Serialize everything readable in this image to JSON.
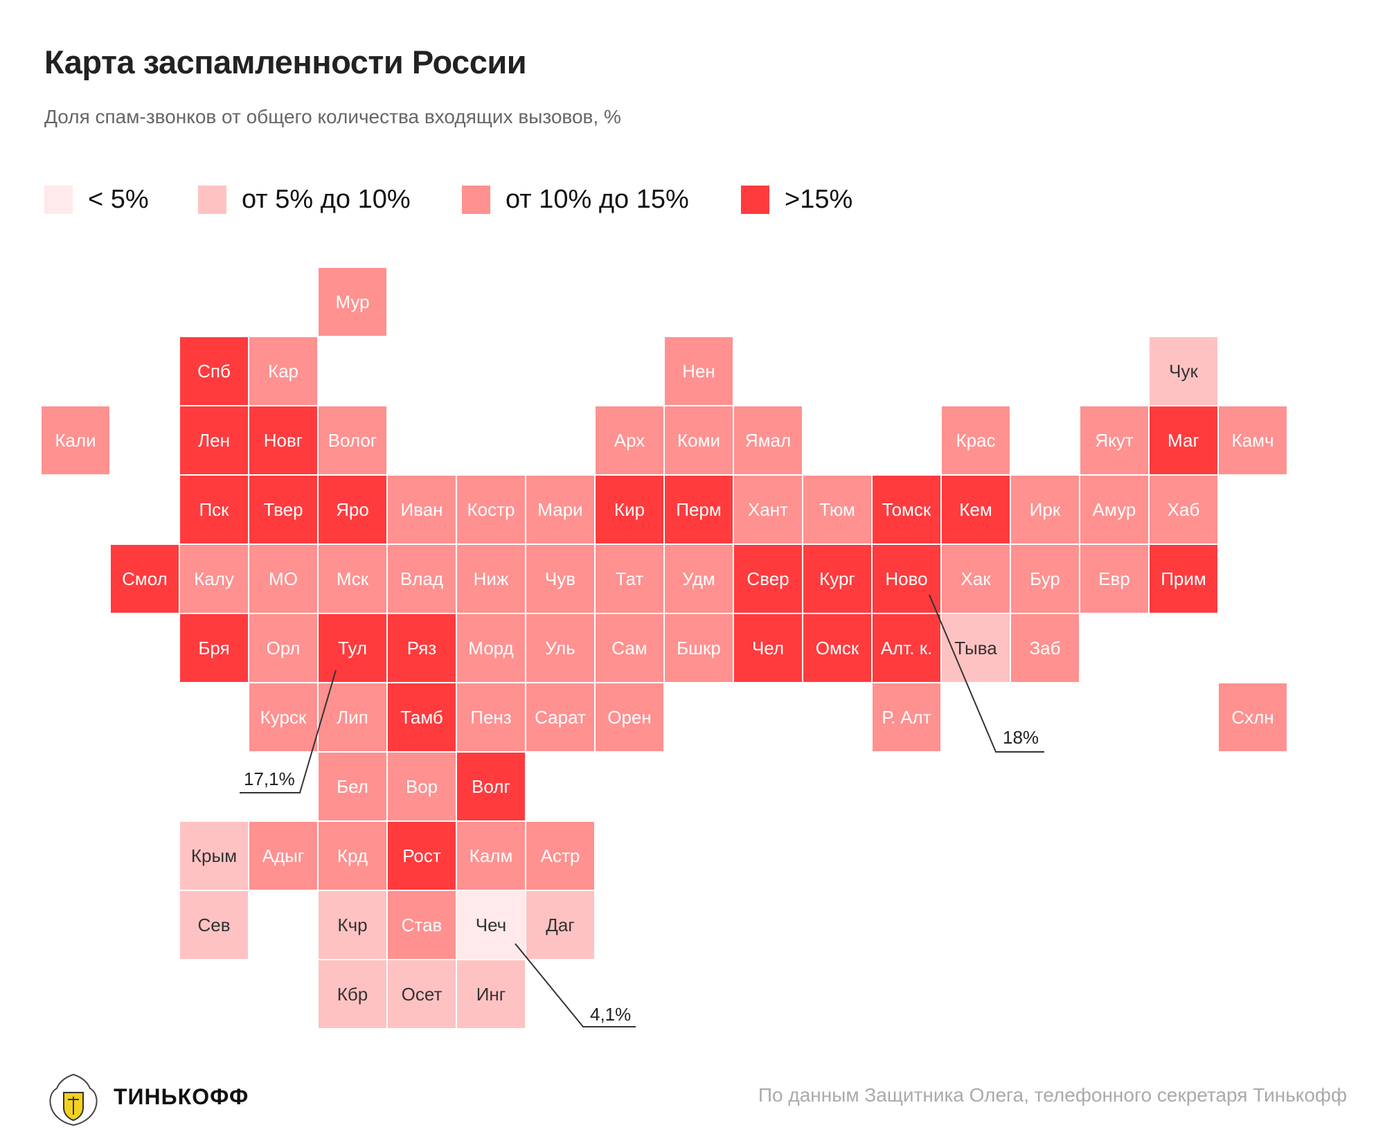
{
  "title": "Карта заспамленности России",
  "subtitle": "Доля спам-звонков от общего количества входящих вызовов, %",
  "colors": {
    "lt5": "#ffe9ea",
    "5to10": "#ffc2c2",
    "10to15": "#ff9190",
    "gt15": "#ff3b3e"
  },
  "legend": [
    {
      "key": "lt5",
      "label": "< 5%"
    },
    {
      "key": "5to10",
      "label": "от 5% до 10%"
    },
    {
      "key": "10to15",
      "label": "от 10% до 15%"
    },
    {
      "key": "gt15",
      "label": ">15%"
    }
  ],
  "regions": [
    {
      "name": "Мур",
      "cat": "10to15"
    },
    {
      "name": "Спб",
      "cat": "gt15"
    },
    {
      "name": "Кар",
      "cat": "10to15"
    },
    {
      "name": "Нен",
      "cat": "10to15"
    },
    {
      "name": "Чук",
      "cat": "5to10"
    },
    {
      "name": "Кали",
      "cat": "10to15"
    },
    {
      "name": "Лен",
      "cat": "gt15"
    },
    {
      "name": "Новг",
      "cat": "gt15"
    },
    {
      "name": "Волог",
      "cat": "10to15"
    },
    {
      "name": "Арх",
      "cat": "10to15"
    },
    {
      "name": "Коми",
      "cat": "10to15"
    },
    {
      "name": "Ямал",
      "cat": "10to15"
    },
    {
      "name": "Крас",
      "cat": "10to15"
    },
    {
      "name": "Якут",
      "cat": "10to15"
    },
    {
      "name": "Маг",
      "cat": "gt15"
    },
    {
      "name": "Камч",
      "cat": "10to15"
    },
    {
      "name": "Пск",
      "cat": "gt15"
    },
    {
      "name": "Твер",
      "cat": "gt15"
    },
    {
      "name": "Яро",
      "cat": "gt15"
    },
    {
      "name": "Иван",
      "cat": "10to15"
    },
    {
      "name": "Костр",
      "cat": "10to15"
    },
    {
      "name": "Мари",
      "cat": "10to15"
    },
    {
      "name": "Кир",
      "cat": "gt15"
    },
    {
      "name": "Перм",
      "cat": "gt15"
    },
    {
      "name": "Хант",
      "cat": "10to15"
    },
    {
      "name": "Тюм",
      "cat": "10to15"
    },
    {
      "name": "Томск",
      "cat": "gt15"
    },
    {
      "name": "Кем",
      "cat": "gt15"
    },
    {
      "name": "Ирк",
      "cat": "10to15"
    },
    {
      "name": "Амур",
      "cat": "10to15"
    },
    {
      "name": "Хаб",
      "cat": "10to15"
    },
    {
      "name": "Смол",
      "cat": "gt15"
    },
    {
      "name": "Калу",
      "cat": "10to15"
    },
    {
      "name": "МО",
      "cat": "10to15"
    },
    {
      "name": "Мск",
      "cat": "10to15"
    },
    {
      "name": "Влад",
      "cat": "10to15"
    },
    {
      "name": "Ниж",
      "cat": "10to15"
    },
    {
      "name": "Чув",
      "cat": "10to15"
    },
    {
      "name": "Тат",
      "cat": "10to15"
    },
    {
      "name": "Удм",
      "cat": "10to15"
    },
    {
      "name": "Свер",
      "cat": "gt15"
    },
    {
      "name": "Кург",
      "cat": "gt15"
    },
    {
      "name": "Ново",
      "cat": "gt15"
    },
    {
      "name": "Хак",
      "cat": "10to15"
    },
    {
      "name": "Бур",
      "cat": "10to15"
    },
    {
      "name": "Евр",
      "cat": "10to15"
    },
    {
      "name": "Прим",
      "cat": "gt15"
    },
    {
      "name": "Бря",
      "cat": "gt15"
    },
    {
      "name": "Орл",
      "cat": "10to15"
    },
    {
      "name": "Тул",
      "cat": "gt15"
    },
    {
      "name": "Ряз",
      "cat": "gt15"
    },
    {
      "name": "Морд",
      "cat": "10to15"
    },
    {
      "name": "Уль",
      "cat": "10to15"
    },
    {
      "name": "Сам",
      "cat": "10to15"
    },
    {
      "name": "Бшкр",
      "cat": "10to15"
    },
    {
      "name": "Чел",
      "cat": "gt15"
    },
    {
      "name": "Омск",
      "cat": "gt15"
    },
    {
      "name": "Алт. к.",
      "cat": "gt15"
    },
    {
      "name": "Тыва",
      "cat": "5to10"
    },
    {
      "name": "Заб",
      "cat": "10to15"
    },
    {
      "name": "Курск",
      "cat": "10to15"
    },
    {
      "name": "Лип",
      "cat": "10to15"
    },
    {
      "name": "Тамб",
      "cat": "gt15"
    },
    {
      "name": "Пенз",
      "cat": "10to15"
    },
    {
      "name": "Сарат",
      "cat": "10to15"
    },
    {
      "name": "Орен",
      "cat": "10to15"
    },
    {
      "name": "Р. Алт",
      "cat": "10to15"
    },
    {
      "name": "Схлн",
      "cat": "10to15"
    },
    {
      "name": "Бел",
      "cat": "10to15"
    },
    {
      "name": "Вор",
      "cat": "10to15"
    },
    {
      "name": "Волг",
      "cat": "gt15"
    },
    {
      "name": "Крым",
      "cat": "5to10"
    },
    {
      "name": "Адыг",
      "cat": "10to15"
    },
    {
      "name": "Крд",
      "cat": "10to15"
    },
    {
      "name": "Рост",
      "cat": "gt15"
    },
    {
      "name": "Калм",
      "cat": "10to15"
    },
    {
      "name": "Астр",
      "cat": "10to15"
    },
    {
      "name": "Сев",
      "cat": "5to10"
    },
    {
      "name": "Кчр",
      "cat": "5to10"
    },
    {
      "name": "Став",
      "cat": "10to15"
    },
    {
      "name": "Чеч",
      "cat": "lt5"
    },
    {
      "name": "Даг",
      "cat": "5to10"
    },
    {
      "name": "Кбр",
      "cat": "5to10"
    },
    {
      "name": "Осет",
      "cat": "5to10"
    },
    {
      "name": "Инг",
      "cat": "5to10"
    }
  ],
  "callouts": [
    {
      "region": "Тул",
      "value": "17,1%"
    },
    {
      "region": "Ново",
      "value": "18%"
    },
    {
      "region": "Чеч",
      "value": "4,1%"
    }
  ],
  "footer": {
    "brand": "ТИНЬКОФФ",
    "source": "По данным Защитника Олега, телефонного секретаря Тинькофф"
  }
}
